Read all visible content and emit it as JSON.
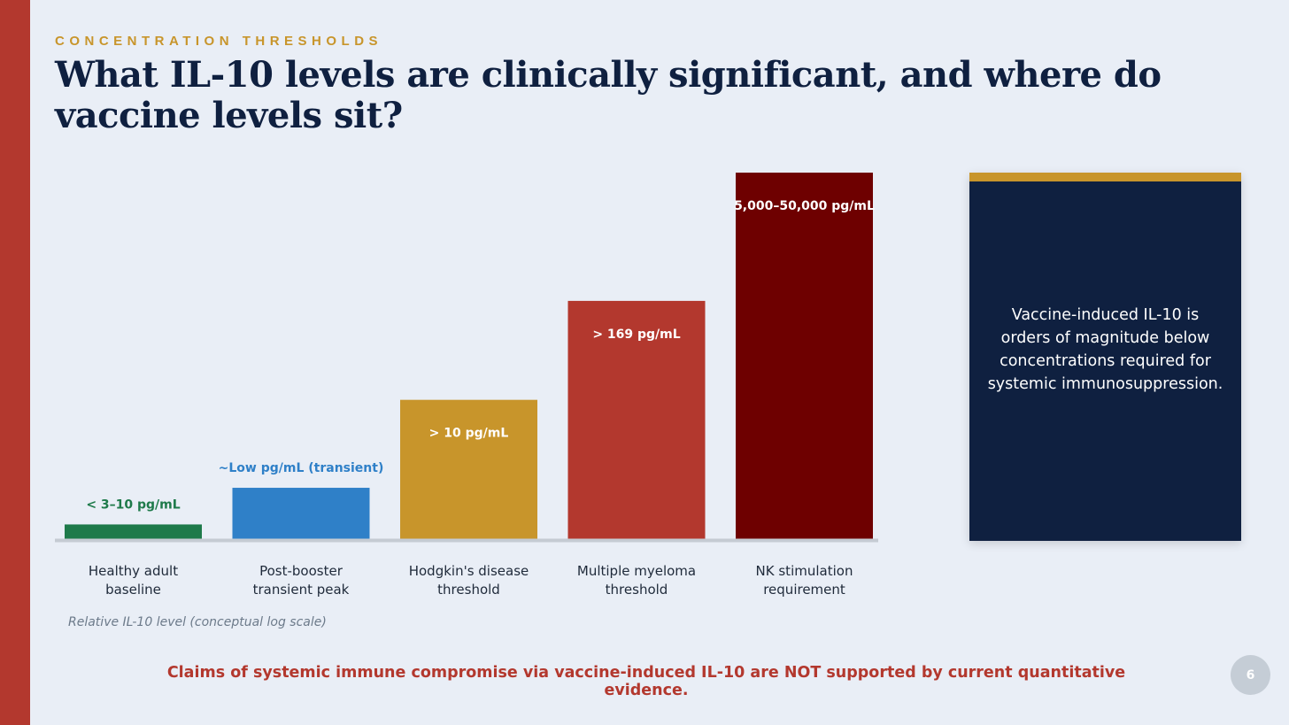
{
  "header": {
    "eyebrow": "CONCENTRATION THRESHOLDS",
    "title": "What IL-10 levels are clinically significant, and where do vaccine levels sit?"
  },
  "chart_data": {
    "type": "bar",
    "title": "",
    "xlabel": "",
    "ylabel": "",
    "axis_note": "Relative IL-10 level (conceptual log scale)",
    "scale": "conceptual log",
    "ylim": [
      0,
      100
    ],
    "grid": false,
    "categories": [
      [
        "Healthy adult",
        "baseline"
      ],
      [
        "Post-booster",
        "transient peak"
      ],
      [
        "Hodgkin's disease",
        "threshold"
      ],
      [
        "Multiple myeloma",
        "threshold"
      ],
      [
        "NK stimulation",
        "requirement"
      ]
    ],
    "values": [
      4,
      14,
      38,
      65,
      100
    ],
    "data_labels": [
      "< 3–10 pg/mL",
      "~Low pg/mL (transient)",
      "> 10 pg/mL",
      "> 169 pg/mL",
      "5,000–50,000 pg/mL"
    ],
    "label_positions": [
      "above",
      "above",
      "inside",
      "inside",
      "inside"
    ],
    "colors": [
      "#1e7a4a",
      "#2f80c8",
      "#c8952b",
      "#b3382e",
      "#6e0000"
    ],
    "label_colors": [
      "#1e7a4a",
      "#2f80c8",
      "#ffffff",
      "#ffffff",
      "#ffffff"
    ],
    "axis_color": "#c5cbd3",
    "category_label_color": "#1f2a3a",
    "axis_note_color": "#6c7a8a"
  },
  "callout": {
    "text": "Vaccine-induced IL-10 is orders of magnitude below concentrations required for systemic immunosuppression."
  },
  "footer": {
    "conclusion": "Claims of systemic immune compromise via vaccine-induced IL-10 are NOT supported by current quantitative evidence.",
    "page_number": "6"
  },
  "colors": {
    "accent_red": "#b3382e",
    "gold": "#c8952b",
    "navy": "#0f2040",
    "background": "#e9eef6"
  }
}
